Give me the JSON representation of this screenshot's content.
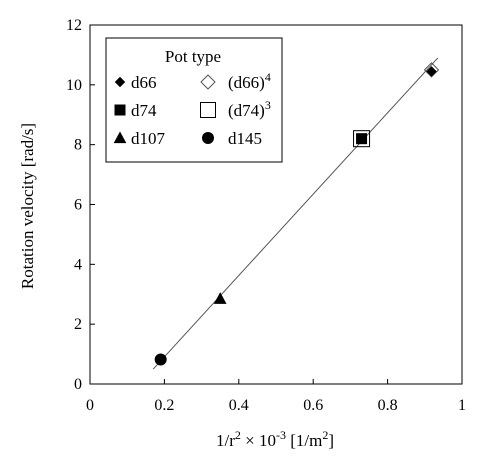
{
  "chart_data": {
    "type": "scatter",
    "title": "",
    "xlabel": {
      "main": "1/r",
      "sup1": "2",
      "mid": " × 10",
      "sup2": "-3",
      "unit": " [1/m",
      "sup3": "2",
      "end": "]"
    },
    "ylabel": "Rotation velocity  [rad/s]",
    "xlim": [
      0,
      1
    ],
    "ylim": [
      0,
      12
    ],
    "xticks": [
      "0",
      "0.2",
      "0.4",
      "0.6",
      "0.8",
      "1"
    ],
    "yticks": [
      "0",
      "2",
      "4",
      "6",
      "8",
      "10",
      "12"
    ],
    "grid": false,
    "legend": {
      "title": "Pot type",
      "placement": "top-left",
      "entries": [
        {
          "label": "d66",
          "sup": "",
          "marker": "diamond-filled"
        },
        {
          "label": "(d66)",
          "sup": "4",
          "marker": "diamond-open"
        },
        {
          "label": "d74",
          "sup": "",
          "marker": "square-filled"
        },
        {
          "label": "(d74)",
          "sup": "3",
          "marker": "square-open"
        },
        {
          "label": "d107",
          "sup": "",
          "marker": "triangle-filled"
        },
        {
          "label": "d145",
          "sup": "",
          "marker": "circle-filled"
        }
      ]
    },
    "series": [
      {
        "name": "d66",
        "marker": "diamond-filled",
        "points": [
          {
            "x": 0.918,
            "y": 10.45
          }
        ]
      },
      {
        "name": "(d66)4",
        "marker": "diamond-open",
        "points": [
          {
            "x": 0.918,
            "y": 10.5
          }
        ]
      },
      {
        "name": "d74",
        "marker": "square-filled",
        "points": [
          {
            "x": 0.73,
            "y": 8.2
          }
        ]
      },
      {
        "name": "(d74)3",
        "marker": "square-open",
        "points": [
          {
            "x": 0.73,
            "y": 8.2
          }
        ]
      },
      {
        "name": "d107",
        "marker": "triangle-filled",
        "points": [
          {
            "x": 0.35,
            "y": 2.85
          }
        ]
      },
      {
        "name": "d145",
        "marker": "circle-filled",
        "points": [
          {
            "x": 0.19,
            "y": 0.82
          }
        ]
      }
    ],
    "trendline": {
      "x": [
        0.17,
        0.935
      ],
      "y": [
        0.5,
        10.9
      ]
    }
  }
}
